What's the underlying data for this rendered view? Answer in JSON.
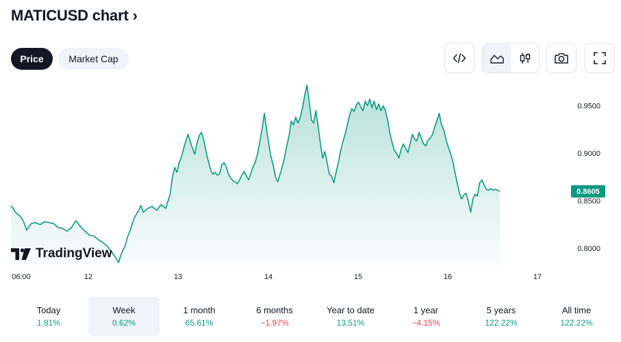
{
  "header": {
    "title": "MATICUSD chart",
    "chevron": "›"
  },
  "tabs": [
    {
      "label": "Price",
      "active": true
    },
    {
      "label": "Market Cap",
      "active": false
    }
  ],
  "toolbar": {
    "icons": [
      "code-embed-icon",
      "area-chart-icon",
      "candles-icon",
      "camera-icon",
      "fullscreen-icon"
    ]
  },
  "watermark": "TradingView",
  "colors": {
    "line": "#089981",
    "accent": "#131722",
    "positive": "#089981",
    "negative": "#f23645"
  },
  "chart_data": {
    "type": "area",
    "title": "",
    "xlabel": "",
    "ylabel": "",
    "x_ticks": [
      "06:00",
      "12",
      "13",
      "14",
      "15",
      "16",
      "17"
    ],
    "y_ticks": [
      "0.8000",
      "0.8500",
      "0.9000",
      "0.9500"
    ],
    "ylim": [
      0.782,
      0.975
    ],
    "last_value_label": "0.8605",
    "series": [
      {
        "points": [
          [
            0.0,
            0.845
          ],
          [
            0.05,
            0.842
          ],
          [
            0.1,
            0.838
          ],
          [
            0.15,
            0.836
          ],
          [
            0.2,
            0.834
          ],
          [
            0.25,
            0.831
          ],
          [
            0.3,
            0.826
          ],
          [
            0.35,
            0.819
          ],
          [
            0.4,
            0.823
          ],
          [
            0.45,
            0.826
          ],
          [
            0.55,
            0.827
          ],
          [
            0.65,
            0.825
          ],
          [
            0.75,
            0.828
          ],
          [
            0.85,
            0.827
          ],
          [
            0.95,
            0.826
          ],
          [
            1.05,
            0.822
          ],
          [
            1.15,
            0.821
          ],
          [
            1.25,
            0.818
          ],
          [
            1.35,
            0.822
          ],
          [
            1.45,
            0.829
          ],
          [
            1.55,
            0.823
          ],
          [
            1.65,
            0.818
          ],
          [
            1.75,
            0.814
          ],
          [
            1.85,
            0.813
          ],
          [
            1.95,
            0.809
          ],
          [
            2.05,
            0.806
          ],
          [
            2.15,
            0.802
          ],
          [
            2.25,
            0.796
          ],
          [
            2.35,
            0.789
          ],
          [
            2.4,
            0.785
          ],
          [
            2.45,
            0.793
          ],
          [
            2.5,
            0.798
          ],
          [
            2.55,
            0.803
          ],
          [
            2.6,
            0.812
          ],
          [
            2.65,
            0.818
          ],
          [
            2.7,
            0.825
          ],
          [
            2.75,
            0.832
          ],
          [
            2.8,
            0.836
          ],
          [
            2.85,
            0.84
          ],
          [
            2.9,
            0.845
          ],
          [
            2.95,
            0.838
          ],
          [
            3.05,
            0.842
          ],
          [
            3.15,
            0.844
          ],
          [
            3.25,
            0.84
          ],
          [
            3.35,
            0.846
          ],
          [
            3.45,
            0.842
          ],
          [
            3.55,
            0.857
          ],
          [
            3.6,
            0.875
          ],
          [
            3.65,
            0.885
          ],
          [
            3.7,
            0.88
          ],
          [
            3.75,
            0.89
          ],
          [
            3.8,
            0.896
          ],
          [
            3.85,
            0.905
          ],
          [
            3.9,
            0.913
          ],
          [
            3.95,
            0.92
          ],
          [
            4.0,
            0.912
          ],
          [
            4.05,
            0.905
          ],
          [
            4.1,
            0.899
          ],
          [
            4.15,
            0.911
          ],
          [
            4.2,
            0.919
          ],
          [
            4.25,
            0.922
          ],
          [
            4.3,
            0.914
          ],
          [
            4.35,
            0.902
          ],
          [
            4.4,
            0.892
          ],
          [
            4.45,
            0.883
          ],
          [
            4.5,
            0.878
          ],
          [
            4.55,
            0.88
          ],
          [
            4.6,
            0.877
          ],
          [
            4.65,
            0.878
          ],
          [
            4.7,
            0.888
          ],
          [
            4.75,
            0.89
          ],
          [
            4.8,
            0.886
          ],
          [
            4.85,
            0.878
          ],
          [
            4.9,
            0.874
          ],
          [
            4.95,
            0.871
          ],
          [
            5.0,
            0.87
          ],
          [
            5.05,
            0.868
          ],
          [
            5.1,
            0.872
          ],
          [
            5.15,
            0.877
          ],
          [
            5.2,
            0.881
          ],
          [
            5.25,
            0.876
          ],
          [
            5.3,
            0.872
          ],
          [
            5.35,
            0.879
          ],
          [
            5.4,
            0.886
          ],
          [
            5.45,
            0.891
          ],
          [
            5.5,
            0.9
          ],
          [
            5.55,
            0.912
          ],
          [
            5.6,
            0.926
          ],
          [
            5.65,
            0.942
          ],
          [
            5.7,
            0.925
          ],
          [
            5.75,
            0.91
          ],
          [
            5.8,
            0.896
          ],
          [
            5.85,
            0.887
          ],
          [
            5.9,
            0.875
          ],
          [
            5.95,
            0.87
          ],
          [
            6.0,
            0.878
          ],
          [
            6.05,
            0.886
          ],
          [
            6.1,
            0.895
          ],
          [
            6.15,
            0.908
          ],
          [
            6.2,
            0.918
          ],
          [
            6.25,
            0.934
          ],
          [
            6.3,
            0.93
          ],
          [
            6.35,
            0.938
          ],
          [
            6.4,
            0.932
          ],
          [
            6.45,
            0.938
          ],
          [
            6.5,
            0.948
          ],
          [
            6.55,
            0.961
          ],
          [
            6.6,
            0.972
          ],
          [
            6.65,
            0.955
          ],
          [
            6.7,
            0.935
          ],
          [
            6.75,
            0.932
          ],
          [
            6.8,
            0.945
          ],
          [
            6.85,
            0.928
          ],
          [
            6.9,
            0.91
          ],
          [
            6.95,
            0.895
          ],
          [
            7.0,
            0.902
          ],
          [
            7.05,
            0.89
          ],
          [
            7.1,
            0.878
          ],
          [
            7.15,
            0.876
          ],
          [
            7.2,
            0.869
          ],
          [
            7.25,
            0.88
          ],
          [
            7.3,
            0.89
          ],
          [
            7.35,
            0.902
          ],
          [
            7.4,
            0.912
          ],
          [
            7.45,
            0.92
          ],
          [
            7.5,
            0.93
          ],
          [
            7.55,
            0.94
          ],
          [
            7.6,
            0.947
          ],
          [
            7.65,
            0.944
          ],
          [
            7.7,
            0.951
          ],
          [
            7.75,
            0.954
          ],
          [
            7.8,
            0.949
          ],
          [
            7.85,
            0.945
          ],
          [
            7.9,
            0.955
          ],
          [
            7.95,
            0.95
          ],
          [
            8.0,
            0.957
          ],
          [
            8.05,
            0.948
          ],
          [
            8.1,
            0.955
          ],
          [
            8.15,
            0.946
          ],
          [
            8.2,
            0.952
          ],
          [
            8.25,
            0.945
          ],
          [
            8.3,
            0.95
          ],
          [
            8.35,
            0.945
          ],
          [
            8.4,
            0.935
          ],
          [
            8.45,
            0.921
          ],
          [
            8.5,
            0.911
          ],
          [
            8.55,
            0.903
          ],
          [
            8.6,
            0.9
          ],
          [
            8.65,
            0.895
          ],
          [
            8.7,
            0.904
          ],
          [
            8.75,
            0.91
          ],
          [
            8.8,
            0.905
          ],
          [
            8.85,
            0.901
          ],
          [
            8.9,
            0.91
          ],
          [
            8.95,
            0.92
          ],
          [
            9.0,
            0.915
          ],
          [
            9.05,
            0.913
          ],
          [
            9.1,
            0.922
          ],
          [
            9.15,
            0.916
          ],
          [
            9.2,
            0.91
          ],
          [
            9.25,
            0.908
          ],
          [
            9.3,
            0.914
          ],
          [
            9.35,
            0.916
          ],
          [
            9.4,
            0.92
          ],
          [
            9.45,
            0.928
          ],
          [
            9.5,
            0.935
          ],
          [
            9.55,
            0.942
          ],
          [
            9.6,
            0.93
          ],
          [
            9.65,
            0.925
          ],
          [
            9.7,
            0.915
          ],
          [
            9.75,
            0.907
          ],
          [
            9.8,
            0.9
          ],
          [
            9.85,
            0.892
          ],
          [
            9.9,
            0.88
          ],
          [
            9.95,
            0.869
          ],
          [
            10.0,
            0.858
          ],
          [
            10.05,
            0.852
          ],
          [
            10.1,
            0.856
          ],
          [
            10.15,
            0.858
          ],
          [
            10.2,
            0.849
          ],
          [
            10.25,
            0.838
          ],
          [
            10.3,
            0.852
          ],
          [
            10.35,
            0.857
          ],
          [
            10.4,
            0.855
          ],
          [
            10.45,
            0.869
          ],
          [
            10.5,
            0.872
          ],
          [
            10.55,
            0.867
          ],
          [
            10.6,
            0.862
          ],
          [
            10.65,
            0.861
          ],
          [
            10.7,
            0.863
          ],
          [
            10.75,
            0.861
          ],
          [
            10.8,
            0.862
          ],
          [
            10.85,
            0.861
          ],
          [
            10.9,
            0.86
          ]
        ]
      }
    ]
  },
  "periods": [
    {
      "label": "Today",
      "change": "1.81%",
      "sign": "pos",
      "active": false
    },
    {
      "label": "Week",
      "change": "0.62%",
      "sign": "pos",
      "active": true
    },
    {
      "label": "1 month",
      "change": "65.61%",
      "sign": "pos",
      "active": false
    },
    {
      "label": "6 months",
      "change": "−1.97%",
      "sign": "neg",
      "active": false
    },
    {
      "label": "Year to date",
      "change": "13.51%",
      "sign": "pos",
      "active": false
    },
    {
      "label": "1 year",
      "change": "−4.15%",
      "sign": "neg",
      "active": false
    },
    {
      "label": "5 years",
      "change": "122.22%",
      "sign": "pos",
      "active": false
    },
    {
      "label": "All time",
      "change": "122.22%",
      "sign": "pos",
      "active": false
    }
  ]
}
